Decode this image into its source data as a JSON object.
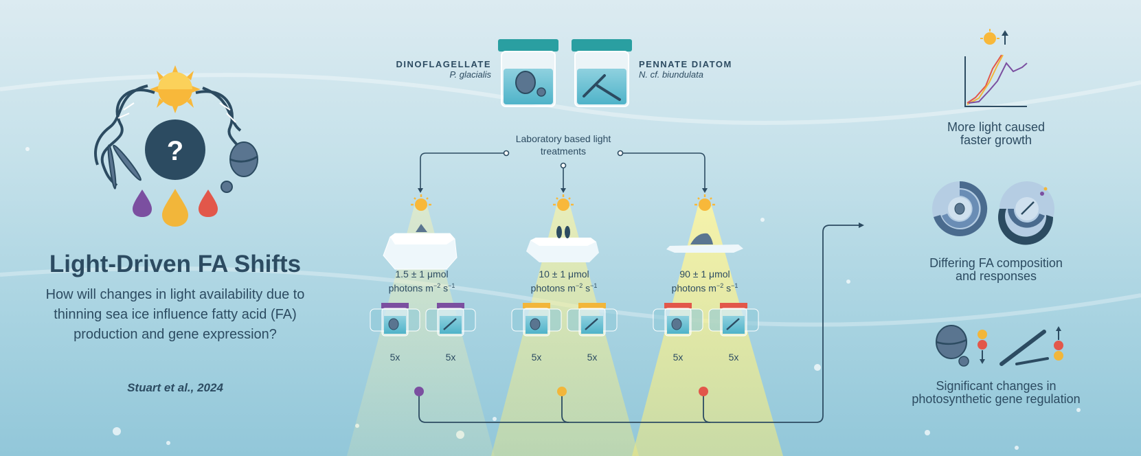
{
  "title": "Light-Driven FA Shifts",
  "question": "How will changes in light availability due to thinning sea ice influence fatty acid (FA) production and gene expression?",
  "citation": "Stuart et al., 2024",
  "species": [
    {
      "name": "DINOFLAGELLATE",
      "scientific": "P. glacialis"
    },
    {
      "name": "PENNATE DIATOM",
      "scientific": "N. cf. biundulata"
    }
  ],
  "lab_label": "Laboratory based light treatments",
  "treatments": [
    {
      "value": "1.5 ± 1 μmol",
      "unit_base": "photons m",
      "unit_exp1": "−2",
      "unit_mid": " s",
      "unit_exp2": "−1",
      "replicates": [
        "5x",
        "5x"
      ],
      "color": "#7b4fa0"
    },
    {
      "value": "10 ± 1 μmol",
      "unit_base": "photons m",
      "unit_exp1": "−2",
      "unit_mid": " s",
      "unit_exp2": "−1",
      "replicates": [
        "5x",
        "5x"
      ],
      "color": "#f2b63a"
    },
    {
      "value": "90 ± 1 μmol",
      "unit_base": "photons m",
      "unit_exp1": "−2",
      "unit_mid": " s",
      "unit_exp2": "−1",
      "replicates": [
        "5x",
        "5x"
      ],
      "color": "#e2574a"
    }
  ],
  "center_symbol": "?",
  "results": [
    {
      "line1": "More light caused",
      "line2": "faster growth"
    },
    {
      "line1": "Differing FA composition",
      "line2": "and responses"
    },
    {
      "line1": "Significant changes in",
      "line2": "photosynthetic gene regulation"
    }
  ],
  "colors": {
    "navy": "#2c4b61",
    "purple": "#7b4fa0",
    "yellow": "#f2b63a",
    "red": "#e2574a",
    "teal": "#2a9fa1"
  }
}
